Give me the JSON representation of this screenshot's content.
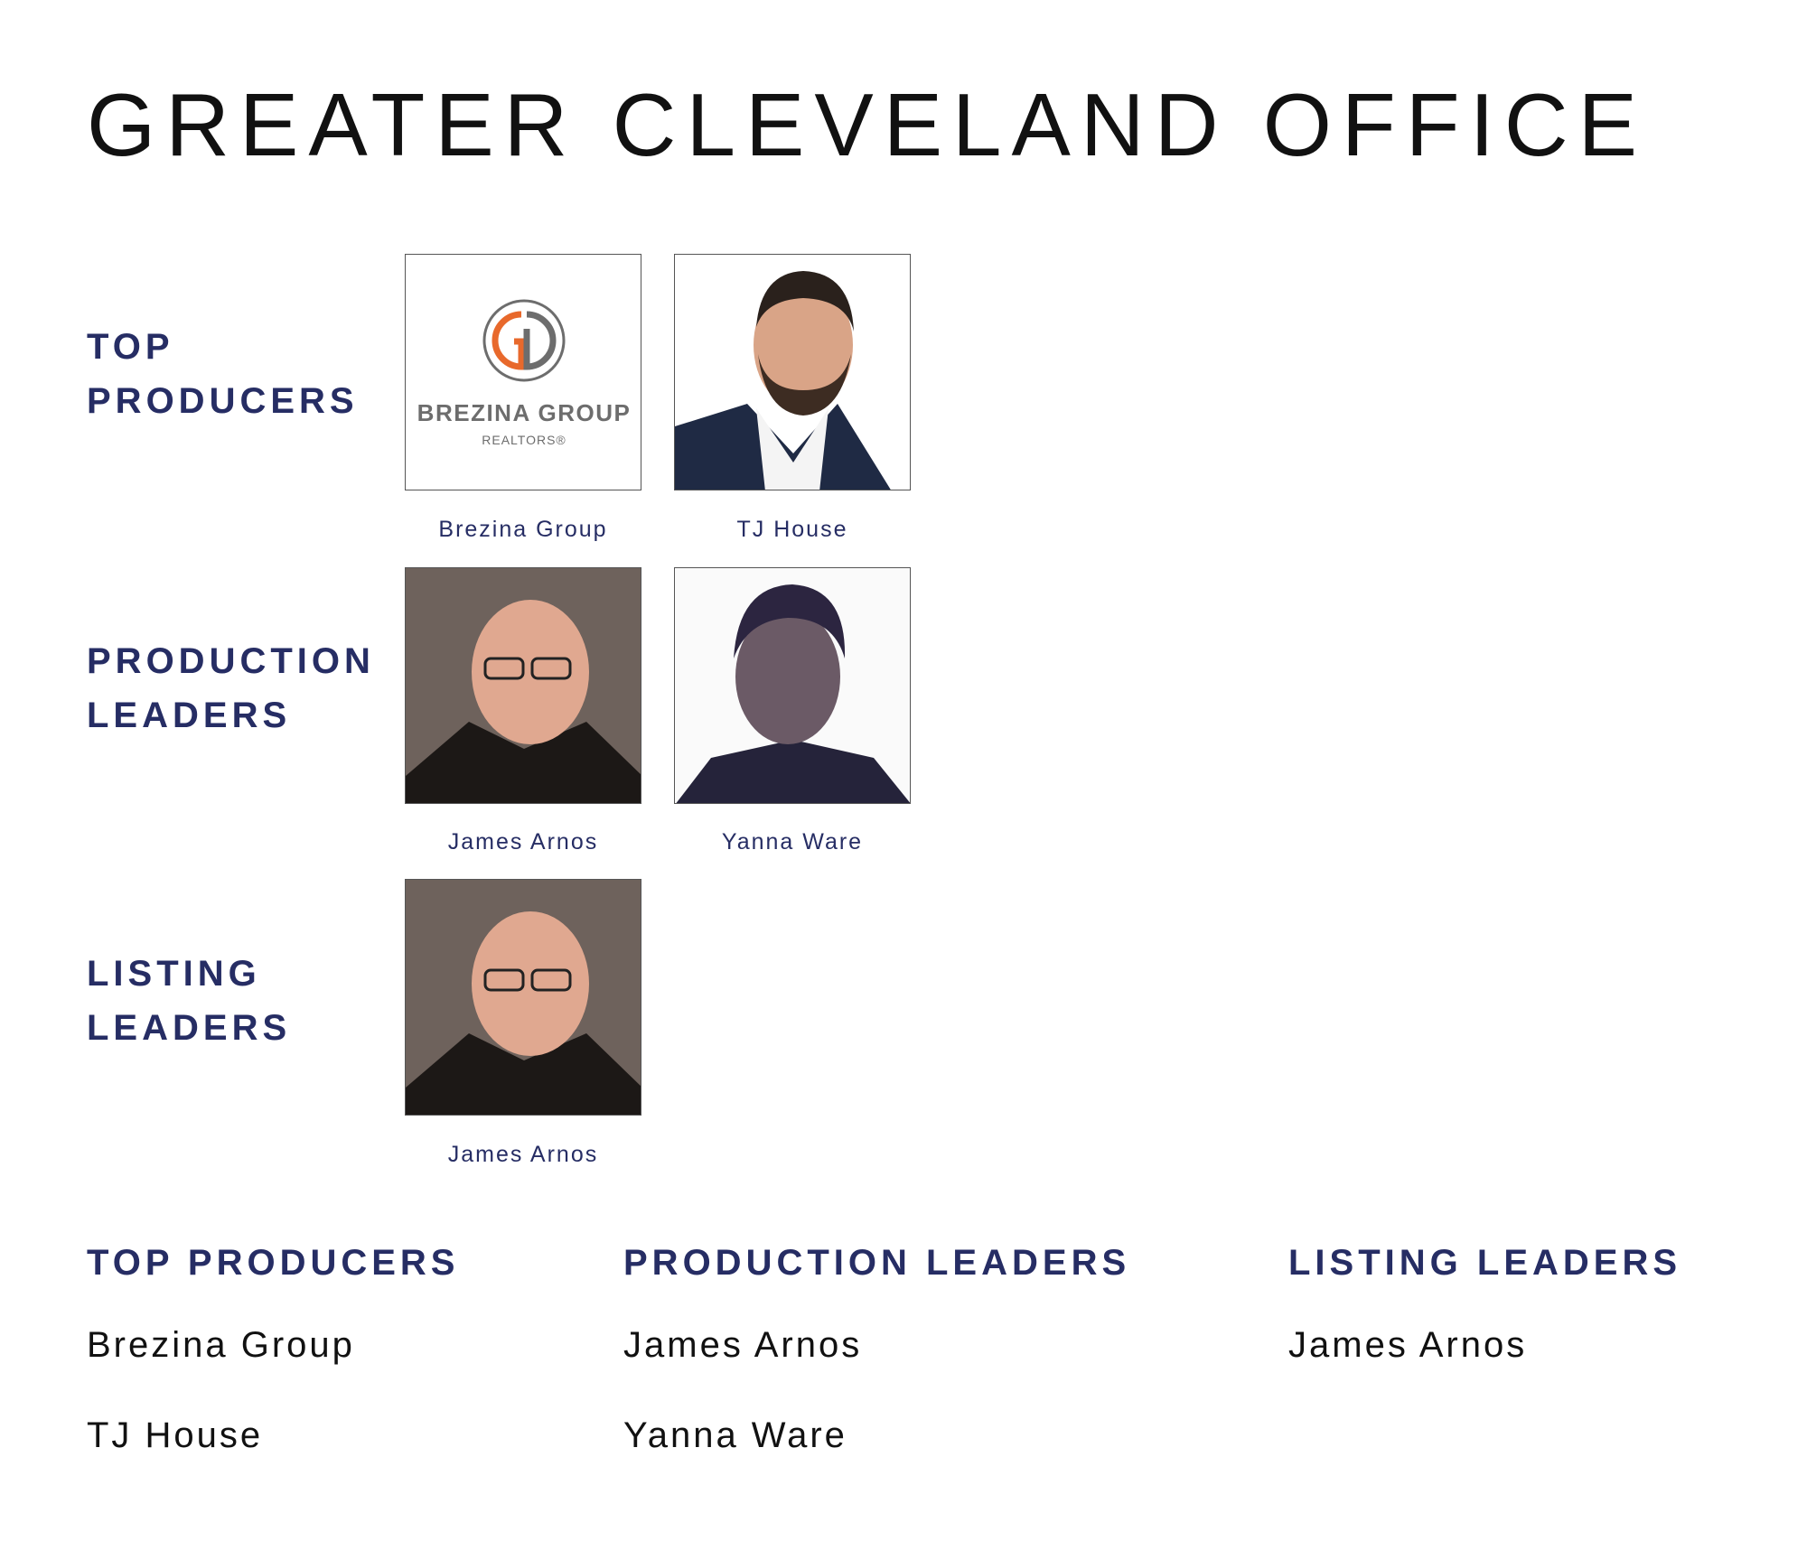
{
  "title": "GREATER CLEVELAND OFFICE",
  "colors": {
    "accent": "#262d64",
    "logo_orange": "#e8692c",
    "logo_gray": "#6d6d6d"
  },
  "sections": [
    {
      "label_line1": "TOP",
      "label_line2": "PRODUCERS",
      "members": [
        {
          "name": "Brezina Group",
          "image": "logo",
          "logo_text": "BREZINA GROUP",
          "logo_sub": "REALTORS®"
        },
        {
          "name": "TJ House",
          "image": "photo"
        }
      ]
    },
    {
      "label_line1": "PRODUCTION",
      "label_line2": "LEADERS",
      "members": [
        {
          "name": "James Arnos",
          "image": "photo"
        },
        {
          "name": "Yanna Ware",
          "image": "photo"
        }
      ]
    },
    {
      "label_line1": "LISTING",
      "label_line2": "LEADERS",
      "members": [
        {
          "name": "James Arnos",
          "image": "photo"
        }
      ]
    }
  ],
  "summary": [
    {
      "heading": "TOP PRODUCERS",
      "names": [
        "Brezina Group",
        "TJ House"
      ]
    },
    {
      "heading": "PRODUCTION LEADERS",
      "names": [
        "James Arnos",
        "Yanna Ware"
      ]
    },
    {
      "heading": "LISTING LEADERS",
      "names": [
        "James Arnos"
      ]
    }
  ]
}
